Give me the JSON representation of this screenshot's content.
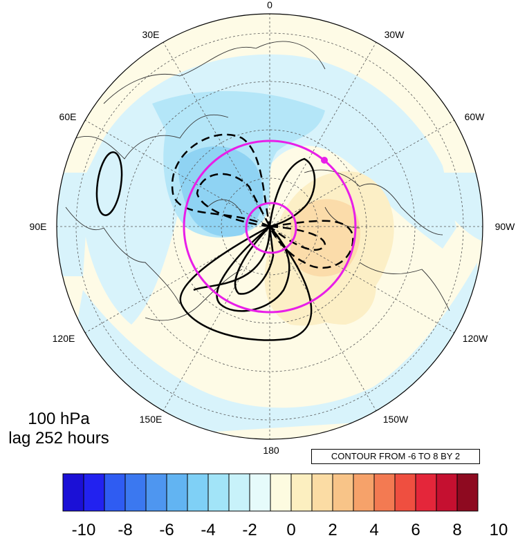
{
  "map": {
    "projection": "north polar stereographic",
    "longitude_labels": [
      "0",
      "30W",
      "60W",
      "90W",
      "120W",
      "150W",
      "180",
      "150E",
      "120E",
      "90E",
      "60E",
      "30E"
    ],
    "pole_marker_color": "#e81ee8"
  },
  "caption": {
    "level": "100 hPa",
    "lag": "lag 252 hours"
  },
  "contour_info": "CONTOUR FROM -6 TO 8 BY 2",
  "colorbar": {
    "labels": [
      "-10",
      "-8",
      "-6",
      "-4",
      "-2",
      "0",
      "2",
      "4",
      "6",
      "8",
      "10"
    ],
    "colors": [
      "#1b10d6",
      "#2222f0",
      "#2f5cf2",
      "#3b78f0",
      "#4e96f0",
      "#62b4f2",
      "#7fd0f6",
      "#a2e4f8",
      "#c8f2fa",
      "#e6fbfb",
      "#fdfbe0",
      "#fcefc0",
      "#fbdca4",
      "#f8c488",
      "#f6a26a",
      "#f37a52",
      "#ef4f40",
      "#e4263a",
      "#c51030",
      "#8e0a20"
    ]
  }
}
